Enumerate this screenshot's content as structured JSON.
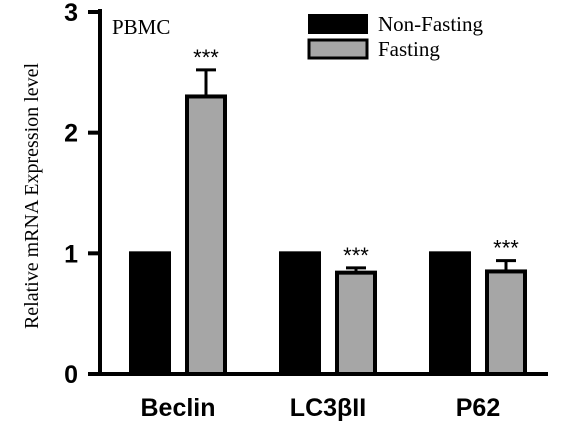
{
  "chart_data": {
    "type": "bar",
    "title": "PBMC",
    "ylabel": "Relative mRNA Expression level",
    "xlabel": "",
    "ylim": [
      0,
      3
    ],
    "yticks": [
      "0",
      "1",
      "2",
      "3"
    ],
    "categories": [
      "Beclin",
      "LC3βII",
      "P62"
    ],
    "series": [
      {
        "name": "Non-Fasting",
        "color": "#000000",
        "values": [
          1.0,
          1.0,
          1.0
        ],
        "errors": [
          0,
          0,
          0
        ],
        "annotations": [
          "",
          "",
          ""
        ]
      },
      {
        "name": "Fasting",
        "color": "#a6a6a6",
        "values": [
          2.3,
          0.84,
          0.85
        ],
        "errors": [
          0.22,
          0.04,
          0.09
        ],
        "annotations": [
          "***",
          "***",
          "***"
        ]
      }
    ],
    "legend_position": "top-right",
    "grid": false
  }
}
